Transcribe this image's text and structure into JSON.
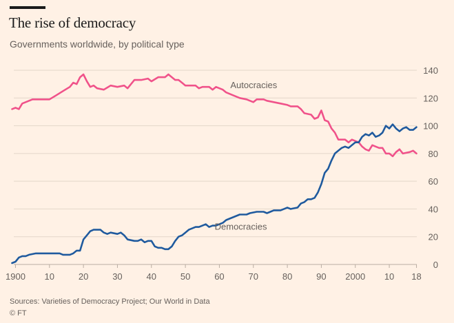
{
  "header": {
    "title": "The rise of democracy",
    "subtitle": "Governments worldwide, by political type"
  },
  "footer": {
    "source": "Sources: Varieties of Democracy Project; Our World in Data",
    "copyright": "© FT"
  },
  "colors": {
    "background": "#fff1e5",
    "democracies": "#1f5a9e",
    "autocracies": "#f0528a",
    "grid": "#e3d6c9",
    "text": "#66605c"
  },
  "chart_data": {
    "type": "line",
    "title": "The rise of democracy",
    "subtitle": "Governments worldwide, by political type",
    "y_axis_side": "right",
    "ylim": [
      0,
      140
    ],
    "yticks": [
      0,
      20,
      40,
      60,
      80,
      100,
      120,
      140
    ],
    "xlim": [
      1900,
      2018
    ],
    "xticks": [
      1900,
      1910,
      1920,
      1930,
      1940,
      1950,
      1960,
      1970,
      1980,
      1990,
      2000,
      2010,
      2018
    ],
    "xtick_labels": [
      "1900",
      "10",
      "20",
      "30",
      "40",
      "50",
      "60",
      "70",
      "80",
      "90",
      "2000",
      "10",
      "18"
    ],
    "grid": "horizontal",
    "series": [
      {
        "name": "Autocracies",
        "label_position": [
          1977,
          127
        ],
        "points": [
          [
            1899,
            112
          ],
          [
            1900,
            113
          ],
          [
            1901,
            112
          ],
          [
            1902,
            116
          ],
          [
            1904,
            118
          ],
          [
            1905,
            119
          ],
          [
            1910,
            119
          ],
          [
            1912,
            122
          ],
          [
            1914,
            125
          ],
          [
            1916,
            128
          ],
          [
            1917,
            131
          ],
          [
            1918,
            130
          ],
          [
            1919,
            135
          ],
          [
            1920,
            137
          ],
          [
            1921,
            132
          ],
          [
            1922,
            128
          ],
          [
            1923,
            129
          ],
          [
            1924,
            127
          ],
          [
            1926,
            126
          ],
          [
            1928,
            129
          ],
          [
            1930,
            128
          ],
          [
            1932,
            129
          ],
          [
            1933,
            127
          ],
          [
            1934,
            130
          ],
          [
            1935,
            133
          ],
          [
            1937,
            133
          ],
          [
            1939,
            134
          ],
          [
            1940,
            132
          ],
          [
            1942,
            135
          ],
          [
            1944,
            135
          ],
          [
            1945,
            137
          ],
          [
            1946,
            135
          ],
          [
            1947,
            133
          ],
          [
            1948,
            133
          ],
          [
            1949,
            131
          ],
          [
            1950,
            129
          ],
          [
            1953,
            129
          ],
          [
            1954,
            127
          ],
          [
            1955,
            128
          ],
          [
            1957,
            128
          ],
          [
            1958,
            126
          ],
          [
            1959,
            128
          ],
          [
            1961,
            126
          ],
          [
            1962,
            124
          ],
          [
            1964,
            122
          ],
          [
            1966,
            120
          ],
          [
            1968,
            119
          ],
          [
            1970,
            117
          ],
          [
            1971,
            119
          ],
          [
            1973,
            119
          ],
          [
            1974,
            118
          ],
          [
            1976,
            117
          ],
          [
            1978,
            116
          ],
          [
            1980,
            115
          ],
          [
            1981,
            114
          ],
          [
            1983,
            114
          ],
          [
            1984,
            112
          ],
          [
            1985,
            109
          ],
          [
            1987,
            108
          ],
          [
            1988,
            105
          ],
          [
            1989,
            106
          ],
          [
            1990,
            111
          ],
          [
            1991,
            104
          ],
          [
            1992,
            103
          ],
          [
            1993,
            98
          ],
          [
            1994,
            95
          ],
          [
            1995,
            90
          ],
          [
            1997,
            90
          ],
          [
            1998,
            88
          ],
          [
            1999,
            90
          ],
          [
            2000,
            89
          ],
          [
            2001,
            88
          ],
          [
            2002,
            85
          ],
          [
            2003,
            83
          ],
          [
            2004,
            82
          ],
          [
            2005,
            86
          ],
          [
            2006,
            85
          ],
          [
            2007,
            84
          ],
          [
            2008,
            84
          ],
          [
            2009,
            80
          ],
          [
            2010,
            80
          ],
          [
            2011,
            78
          ],
          [
            2012,
            81
          ],
          [
            2013,
            83
          ],
          [
            2014,
            80
          ],
          [
            2016,
            81
          ],
          [
            2017,
            82
          ],
          [
            2018,
            80
          ]
        ]
      },
      {
        "name": "Democracies",
        "label_position": [
          1974,
          25
        ],
        "points": [
          [
            1899,
            1
          ],
          [
            1900,
            2
          ],
          [
            1901,
            5
          ],
          [
            1902,
            6
          ],
          [
            1903,
            6
          ],
          [
            1904,
            7
          ],
          [
            1906,
            8
          ],
          [
            1910,
            8
          ],
          [
            1913,
            8
          ],
          [
            1914,
            7
          ],
          [
            1916,
            7
          ],
          [
            1917,
            8
          ],
          [
            1918,
            10
          ],
          [
            1919,
            10
          ],
          [
            1920,
            18
          ],
          [
            1921,
            21
          ],
          [
            1922,
            24
          ],
          [
            1923,
            25
          ],
          [
            1925,
            25
          ],
          [
            1926,
            23
          ],
          [
            1927,
            22
          ],
          [
            1928,
            23
          ],
          [
            1930,
            22
          ],
          [
            1931,
            23
          ],
          [
            1932,
            21
          ],
          [
            1933,
            18
          ],
          [
            1935,
            17
          ],
          [
            1936,
            17
          ],
          [
            1937,
            18
          ],
          [
            1938,
            16
          ],
          [
            1939,
            17
          ],
          [
            1940,
            17
          ],
          [
            1941,
            13
          ],
          [
            1942,
            12
          ],
          [
            1943,
            12
          ],
          [
            1944,
            11
          ],
          [
            1945,
            11
          ],
          [
            1946,
            13
          ],
          [
            1947,
            17
          ],
          [
            1948,
            20
          ],
          [
            1949,
            21
          ],
          [
            1950,
            23
          ],
          [
            1951,
            25
          ],
          [
            1952,
            26
          ],
          [
            1953,
            27
          ],
          [
            1954,
            27
          ],
          [
            1955,
            28
          ],
          [
            1956,
            29
          ],
          [
            1957,
            27
          ],
          [
            1958,
            28
          ],
          [
            1959,
            28
          ],
          [
            1960,
            29
          ],
          [
            1961,
            30
          ],
          [
            1962,
            32
          ],
          [
            1963,
            33
          ],
          [
            1965,
            35
          ],
          [
            1966,
            36
          ],
          [
            1968,
            36
          ],
          [
            1969,
            37
          ],
          [
            1971,
            38
          ],
          [
            1973,
            38
          ],
          [
            1974,
            37
          ],
          [
            1975,
            38
          ],
          [
            1976,
            39
          ],
          [
            1977,
            39
          ],
          [
            1978,
            39
          ],
          [
            1979,
            40
          ],
          [
            1980,
            41
          ],
          [
            1981,
            40
          ],
          [
            1983,
            41
          ],
          [
            1984,
            44
          ],
          [
            1985,
            45
          ],
          [
            1986,
            47
          ],
          [
            1987,
            47
          ],
          [
            1988,
            48
          ],
          [
            1989,
            52
          ],
          [
            1990,
            58
          ],
          [
            1991,
            66
          ],
          [
            1992,
            69
          ],
          [
            1993,
            75
          ],
          [
            1994,
            80
          ],
          [
            1995,
            82
          ],
          [
            1996,
            84
          ],
          [
            1997,
            85
          ],
          [
            1998,
            84
          ],
          [
            1999,
            86
          ],
          [
            2000,
            88
          ],
          [
            2001,
            88
          ],
          [
            2002,
            92
          ],
          [
            2003,
            94
          ],
          [
            2004,
            93
          ],
          [
            2005,
            95
          ],
          [
            2006,
            92
          ],
          [
            2007,
            93
          ],
          [
            2008,
            95
          ],
          [
            2009,
            100
          ],
          [
            2010,
            98
          ],
          [
            2011,
            101
          ],
          [
            2012,
            98
          ],
          [
            2013,
            96
          ],
          [
            2014,
            98
          ],
          [
            2015,
            99
          ],
          [
            2016,
            97
          ],
          [
            2017,
            97
          ],
          [
            2018,
            99
          ]
        ]
      }
    ]
  }
}
